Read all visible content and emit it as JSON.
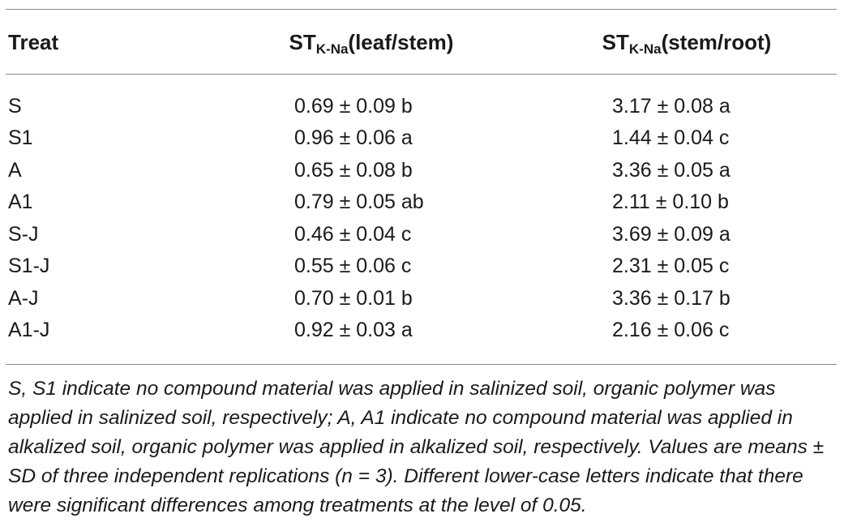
{
  "table": {
    "headers": {
      "col1": "Treat",
      "col2_main": "ST",
      "col2_sub": "K-Na",
      "col2_tail": "(leaf/stem)",
      "col3_main": "ST",
      "col3_sub": "K-Na",
      "col3_tail": "(stem/root)"
    },
    "rows": [
      {
        "treat": "S",
        "leaf_stem": "0.69 ± 0.09 b",
        "stem_root": "3.17 ± 0.08 a"
      },
      {
        "treat": "S1",
        "leaf_stem": "0.96 ± 0.06 a",
        "stem_root": "1.44 ± 0.04 c"
      },
      {
        "treat": "A",
        "leaf_stem": "0.65 ± 0.08 b",
        "stem_root": "3.36 ± 0.05 a"
      },
      {
        "treat": "A1",
        "leaf_stem": "0.79 ± 0.05 ab",
        "stem_root": "2.11 ± 0.10 b"
      },
      {
        "treat": "S-J",
        "leaf_stem": "0.46 ± 0.04 c",
        "stem_root": "3.69 ± 0.09 a"
      },
      {
        "treat": "S1-J",
        "leaf_stem": "0.55 ± 0.06 c",
        "stem_root": "2.31 ± 0.05 c"
      },
      {
        "treat": "A-J",
        "leaf_stem": "0.70 ± 0.01 b",
        "stem_root": "3.36 ± 0.17 b"
      },
      {
        "treat": "A1-J",
        "leaf_stem": "0.92 ± 0.03 a",
        "stem_root": "2.16 ± 0.06 c"
      }
    ],
    "footnote": "S, S1 indicate no compound material was applied in salinized soil, organic polymer was applied in salinized soil, respectively; A, A1 indicate no compound material was applied in alkalized soil, organic polymer was applied in alkalized soil, respectively. Values are means ± SD of three independent replications (n = 3). Different lower-case letters indicate that there were significant differences among treatments at the level of 0.05."
  }
}
